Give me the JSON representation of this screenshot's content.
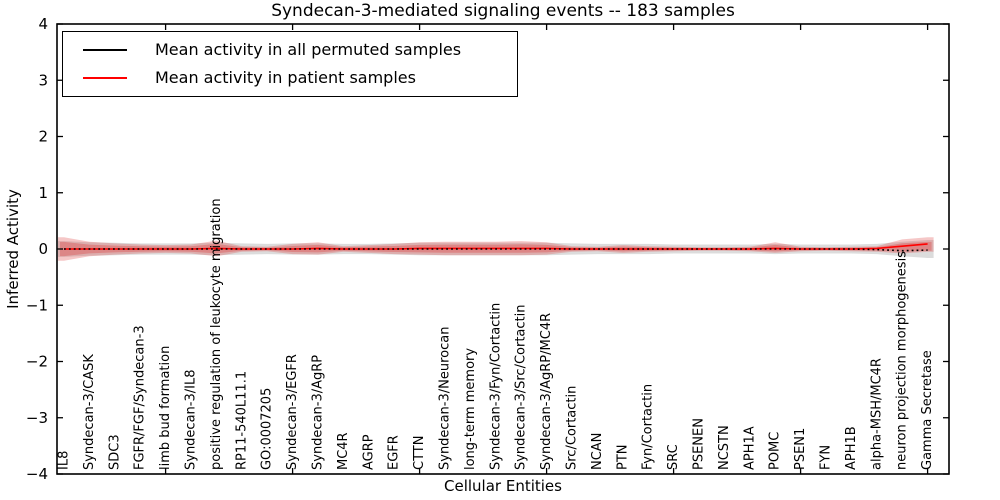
{
  "legend": {
    "items": [
      {
        "label": "Mean activity in all permuted samples",
        "color": "#000000"
      },
      {
        "label": "Mean activity in patient samples",
        "color": "#ff0000"
      }
    ]
  },
  "chart_data": {
    "type": "area",
    "title": "Syndecan-3-mediated signaling events -- 183 samples",
    "xlabel": "Cellular Entities",
    "ylabel": "Inferred Activity",
    "ylim": [
      -4,
      4
    ],
    "yticks": [
      4,
      3,
      2,
      1,
      0,
      -1,
      -2,
      -3,
      -4
    ],
    "x_major_tick_indices": [
      4,
      9,
      14,
      19,
      24,
      29,
      34
    ],
    "grid": false,
    "legend_position": "upper left",
    "categories": [
      "IL8",
      "Syndecan-3/CASK",
      "SDC3",
      "FGFR/FGF/Syndecan-3",
      "limb bud formation",
      "Syndecan-3/IL8",
      "positive regulation of leukocyte migration",
      "RP11-540L11.1",
      "GO:0007205",
      "Syndecan-3/EGFR",
      "Syndecan-3/AgRP",
      "MC4R",
      "AGRP",
      "EGFR",
      "CTTN",
      "Syndecan-3/Neurocan",
      "long-term memory",
      "Syndecan-3/Fyn/Cortactin",
      "Syndecan-3/Src/Cortactin",
      "Syndecan-3/AgRP/MC4R",
      "Src/Cortactin",
      "NCAN",
      "PTN",
      "Fyn/Cortactin",
      "SRC",
      "PSENEN",
      "NCSTN",
      "APH1A",
      "POMC",
      "PSEN1",
      "FYN",
      "APH1B",
      "alpha-MSH/MC4R",
      "neuron projection morphogenesis",
      "Gamma Secretase"
    ],
    "series": [
      {
        "name": "Mean activity in patient samples",
        "color": "#ff0000",
        "linestyle": "solid",
        "values": [
          0,
          0,
          0,
          0,
          0,
          0,
          0.01,
          0,
          0,
          0,
          0.01,
          0,
          0,
          0,
          0.01,
          0.01,
          0.01,
          0.01,
          0.01,
          0.01,
          0,
          0,
          0,
          0,
          0,
          0,
          0,
          0,
          0.01,
          0,
          0,
          0,
          0.01,
          0.05,
          0.09
        ]
      },
      {
        "name": "Mean activity in all permuted samples",
        "color": "#000000",
        "linestyle": "dotted",
        "values": [
          0,
          0,
          0,
          0,
          0,
          0,
          0,
          0,
          0,
          0,
          0,
          0,
          0,
          0,
          0,
          0,
          0,
          0,
          0,
          0,
          0,
          0,
          0,
          0,
          0,
          0,
          0,
          0,
          0,
          0,
          0,
          0,
          -0.01,
          -0.03,
          -0.02
        ]
      }
    ],
    "bands": [
      {
        "name": "permuted-samples-range",
        "color": "#a8a8a8",
        "opacity": 0.4,
        "upper": [
          0.14,
          0.12,
          0.11,
          0.1,
          0.1,
          0.1,
          0.11,
          0.1,
          0.09,
          0.1,
          0.1,
          0.09,
          0.09,
          0.1,
          0.11,
          0.11,
          0.11,
          0.11,
          0.11,
          0.11,
          0.1,
          0.09,
          0.09,
          0.09,
          0.08,
          0.08,
          0.08,
          0.08,
          0.09,
          0.08,
          0.08,
          0.08,
          0.09,
          0.13,
          0.16
        ],
        "lower": [
          -0.14,
          -0.12,
          -0.11,
          -0.1,
          -0.1,
          -0.1,
          -0.11,
          -0.1,
          -0.09,
          -0.1,
          -0.1,
          -0.09,
          -0.09,
          -0.1,
          -0.11,
          -0.11,
          -0.11,
          -0.11,
          -0.11,
          -0.11,
          -0.1,
          -0.09,
          -0.09,
          -0.09,
          -0.08,
          -0.08,
          -0.08,
          -0.08,
          -0.09,
          -0.08,
          -0.08,
          -0.08,
          -0.09,
          -0.13,
          -0.16
        ]
      },
      {
        "name": "patient-samples-range",
        "color": "#dd4444",
        "opacity": 0.3,
        "inner_scale": 0.6,
        "inner_opacity": 0.38,
        "upper": [
          0.21,
          0.13,
          0.1,
          0.08,
          0.07,
          0.08,
          0.15,
          0.05,
          0.04,
          0.09,
          0.12,
          0.05,
          0.07,
          0.09,
          0.12,
          0.13,
          0.13,
          0.13,
          0.14,
          0.12,
          0.05,
          0.04,
          0.07,
          0.05,
          0.04,
          0.03,
          0.03,
          0.04,
          0.12,
          0.04,
          0.03,
          0.04,
          0.05,
          0.17,
          0.21
        ],
        "lower": [
          -0.21,
          -0.13,
          -0.1,
          -0.08,
          -0.07,
          -0.08,
          -0.13,
          -0.05,
          -0.04,
          -0.09,
          -0.1,
          -0.05,
          -0.07,
          -0.09,
          -0.1,
          -0.11,
          -0.11,
          -0.11,
          -0.11,
          -0.1,
          -0.05,
          -0.04,
          -0.07,
          -0.05,
          -0.04,
          -0.03,
          -0.03,
          -0.04,
          -0.07,
          -0.04,
          -0.03,
          -0.04,
          -0.05,
          -0.08,
          -0.05
        ]
      }
    ]
  }
}
